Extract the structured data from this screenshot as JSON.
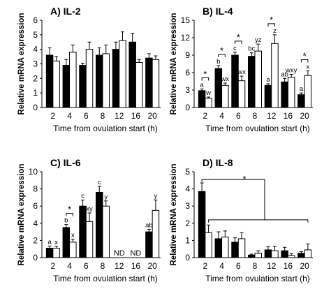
{
  "chart_data": [
    {
      "type": "bar",
      "title": "A) IL-2",
      "xlabel": "Time from ovulation start (h)",
      "ylabel": "Relative mRNA expression",
      "ylim": [
        0,
        6
      ],
      "yticks": [
        0,
        1,
        2,
        3,
        4,
        5,
        6
      ],
      "categories": [
        "2",
        "4",
        "6",
        "8",
        "12",
        "16",
        "20"
      ],
      "series": [
        {
          "color": "#000000",
          "values": [
            3.6,
            2.9,
            2.9,
            3.6,
            4.0,
            4.5,
            3.4
          ],
          "errors": [
            0.5,
            0.4,
            0.15,
            0.5,
            0.5,
            0.6,
            0.3
          ]
        },
        {
          "color": "#ffffff",
          "values": [
            3.2,
            3.8,
            4.0,
            3.7,
            4.6,
            3.1,
            3.3
          ],
          "errors": [
            0.3,
            0.5,
            0.5,
            0.6,
            0.6,
            0.2,
            0.25
          ]
        }
      ],
      "bar_labels": [],
      "nd_labels": [],
      "brackets": [],
      "grid": false,
      "legend": "none"
    },
    {
      "type": "bar",
      "title": "B) IL-4",
      "xlabel": "Time from ovulation start (h)",
      "ylabel": "Relative mRNA expression",
      "ylim": [
        0,
        15
      ],
      "yticks": [
        0,
        3,
        6,
        9,
        12,
        15
      ],
      "categories": [
        "2",
        "4",
        "6",
        "8",
        "12",
        "16",
        "20"
      ],
      "series": [
        {
          "color": "#000000",
          "values": [
            2.9,
            6.7,
            9.0,
            8.8,
            3.8,
            4.4,
            2.2
          ],
          "errors": [
            0.3,
            0.5,
            0.5,
            0.6,
            0.3,
            0.6,
            0.3
          ]
        },
        {
          "color": "#ffffff",
          "values": [
            1.6,
            3.8,
            4.6,
            9.7,
            11.0,
            5.2,
            5.5
          ],
          "errors": [
            0.2,
            0.4,
            0.8,
            1.2,
            1.5,
            0.5,
            0.8
          ]
        }
      ],
      "bar_labels": [
        {
          "category": 0,
          "series": 0,
          "text": "a"
        },
        {
          "category": 0,
          "series": 1,
          "text": "w"
        },
        {
          "category": 1,
          "series": 0,
          "text": "b"
        },
        {
          "category": 1,
          "series": 1,
          "text": "wx"
        },
        {
          "category": 2,
          "series": 0,
          "text": "c"
        },
        {
          "category": 2,
          "series": 1,
          "text": "wx"
        },
        {
          "category": 3,
          "series": 0,
          "text": "bc"
        },
        {
          "category": 3,
          "series": 1,
          "text": "yz"
        },
        {
          "category": 4,
          "series": 0,
          "text": "a"
        },
        {
          "category": 4,
          "series": 1,
          "text": "z"
        },
        {
          "category": 5,
          "series": 0,
          "text": "ab"
        },
        {
          "category": 5,
          "series": 1,
          "text": "wxy"
        },
        {
          "category": 6,
          "series": 0,
          "text": "a"
        },
        {
          "category": 6,
          "series": 1,
          "text": "x"
        }
      ],
      "nd_labels": [],
      "brackets": [
        {
          "category": 0,
          "text": "*"
        },
        {
          "category": 1,
          "text": "*"
        },
        {
          "category": 2,
          "text": "*"
        },
        {
          "category": 4,
          "text": "*"
        },
        {
          "category": 6,
          "text": "*"
        }
      ],
      "grid": false,
      "legend": "none"
    },
    {
      "type": "bar",
      "title": "C) IL-6",
      "xlabel": "Time from ovulation start (h)",
      "ylabel": "Relative mRNA expression",
      "ylim": [
        0,
        10
      ],
      "yticks": [
        0,
        2,
        4,
        6,
        8,
        10
      ],
      "categories": [
        "2",
        "4",
        "6",
        "8",
        "12",
        "16",
        "20"
      ],
      "series": [
        {
          "color": "#000000",
          "values": [
            1.1,
            3.5,
            6.0,
            7.6,
            null,
            null,
            3.0
          ],
          "errors": [
            0.25,
            0.35,
            0.7,
            0.7,
            0,
            0,
            0.3
          ]
        },
        {
          "color": "#ffffff",
          "values": [
            1.1,
            1.8,
            4.2,
            6.0,
            null,
            null,
            5.5
          ],
          "errors": [
            0.2,
            0.35,
            1.0,
            0.6,
            0,
            0,
            1.2
          ]
        }
      ],
      "bar_labels": [
        {
          "category": 0,
          "series": 0,
          "text": "a"
        },
        {
          "category": 0,
          "series": 1,
          "text": "x"
        },
        {
          "category": 1,
          "series": 0,
          "text": "b"
        },
        {
          "category": 1,
          "series": 1,
          "text": "x"
        },
        {
          "category": 2,
          "series": 0,
          "text": "c"
        },
        {
          "category": 2,
          "series": 1,
          "text": "xy"
        },
        {
          "category": 3,
          "series": 0,
          "text": "c"
        },
        {
          "category": 3,
          "series": 1,
          "text": "y"
        },
        {
          "category": 6,
          "series": 0,
          "text": "ab"
        },
        {
          "category": 6,
          "series": 1,
          "text": "y"
        }
      ],
      "nd_labels": [
        {
          "category": 4,
          "text": "ND"
        },
        {
          "category": 5,
          "text": "ND"
        }
      ],
      "brackets": [
        {
          "category": 1,
          "text": "*"
        }
      ],
      "grid": false,
      "legend": "none"
    },
    {
      "type": "bar",
      "title": "D) IL-8",
      "xlabel": "Time from ovulation start (h)",
      "ylabel": "Relative mRNA expression",
      "ylim": [
        0,
        5
      ],
      "yticks": [
        0,
        1,
        2,
        3,
        4,
        5
      ],
      "categories": [
        "2",
        "4",
        "6",
        "8",
        "12",
        "16",
        "20"
      ],
      "series": [
        {
          "color": "#000000",
          "values": [
            3.85,
            1.1,
            0.9,
            0.15,
            0.45,
            0.4,
            0.25
          ],
          "errors": [
            0.5,
            0.4,
            0.25,
            0.05,
            0.2,
            0.2,
            0.1
          ]
        },
        {
          "color": "#ffffff",
          "values": [
            1.45,
            1.2,
            1.1,
            0.25,
            0.4,
            0.12,
            0.45
          ],
          "errors": [
            0.45,
            0.35,
            0.35,
            0.15,
            0.25,
            0.1,
            0.35
          ]
        }
      ],
      "bar_labels": [],
      "nd_labels": [],
      "brackets": [],
      "group_bracket": {
        "text": "*",
        "from_category": 0,
        "to_category": 6
      },
      "grid": false,
      "legend": "none"
    }
  ]
}
